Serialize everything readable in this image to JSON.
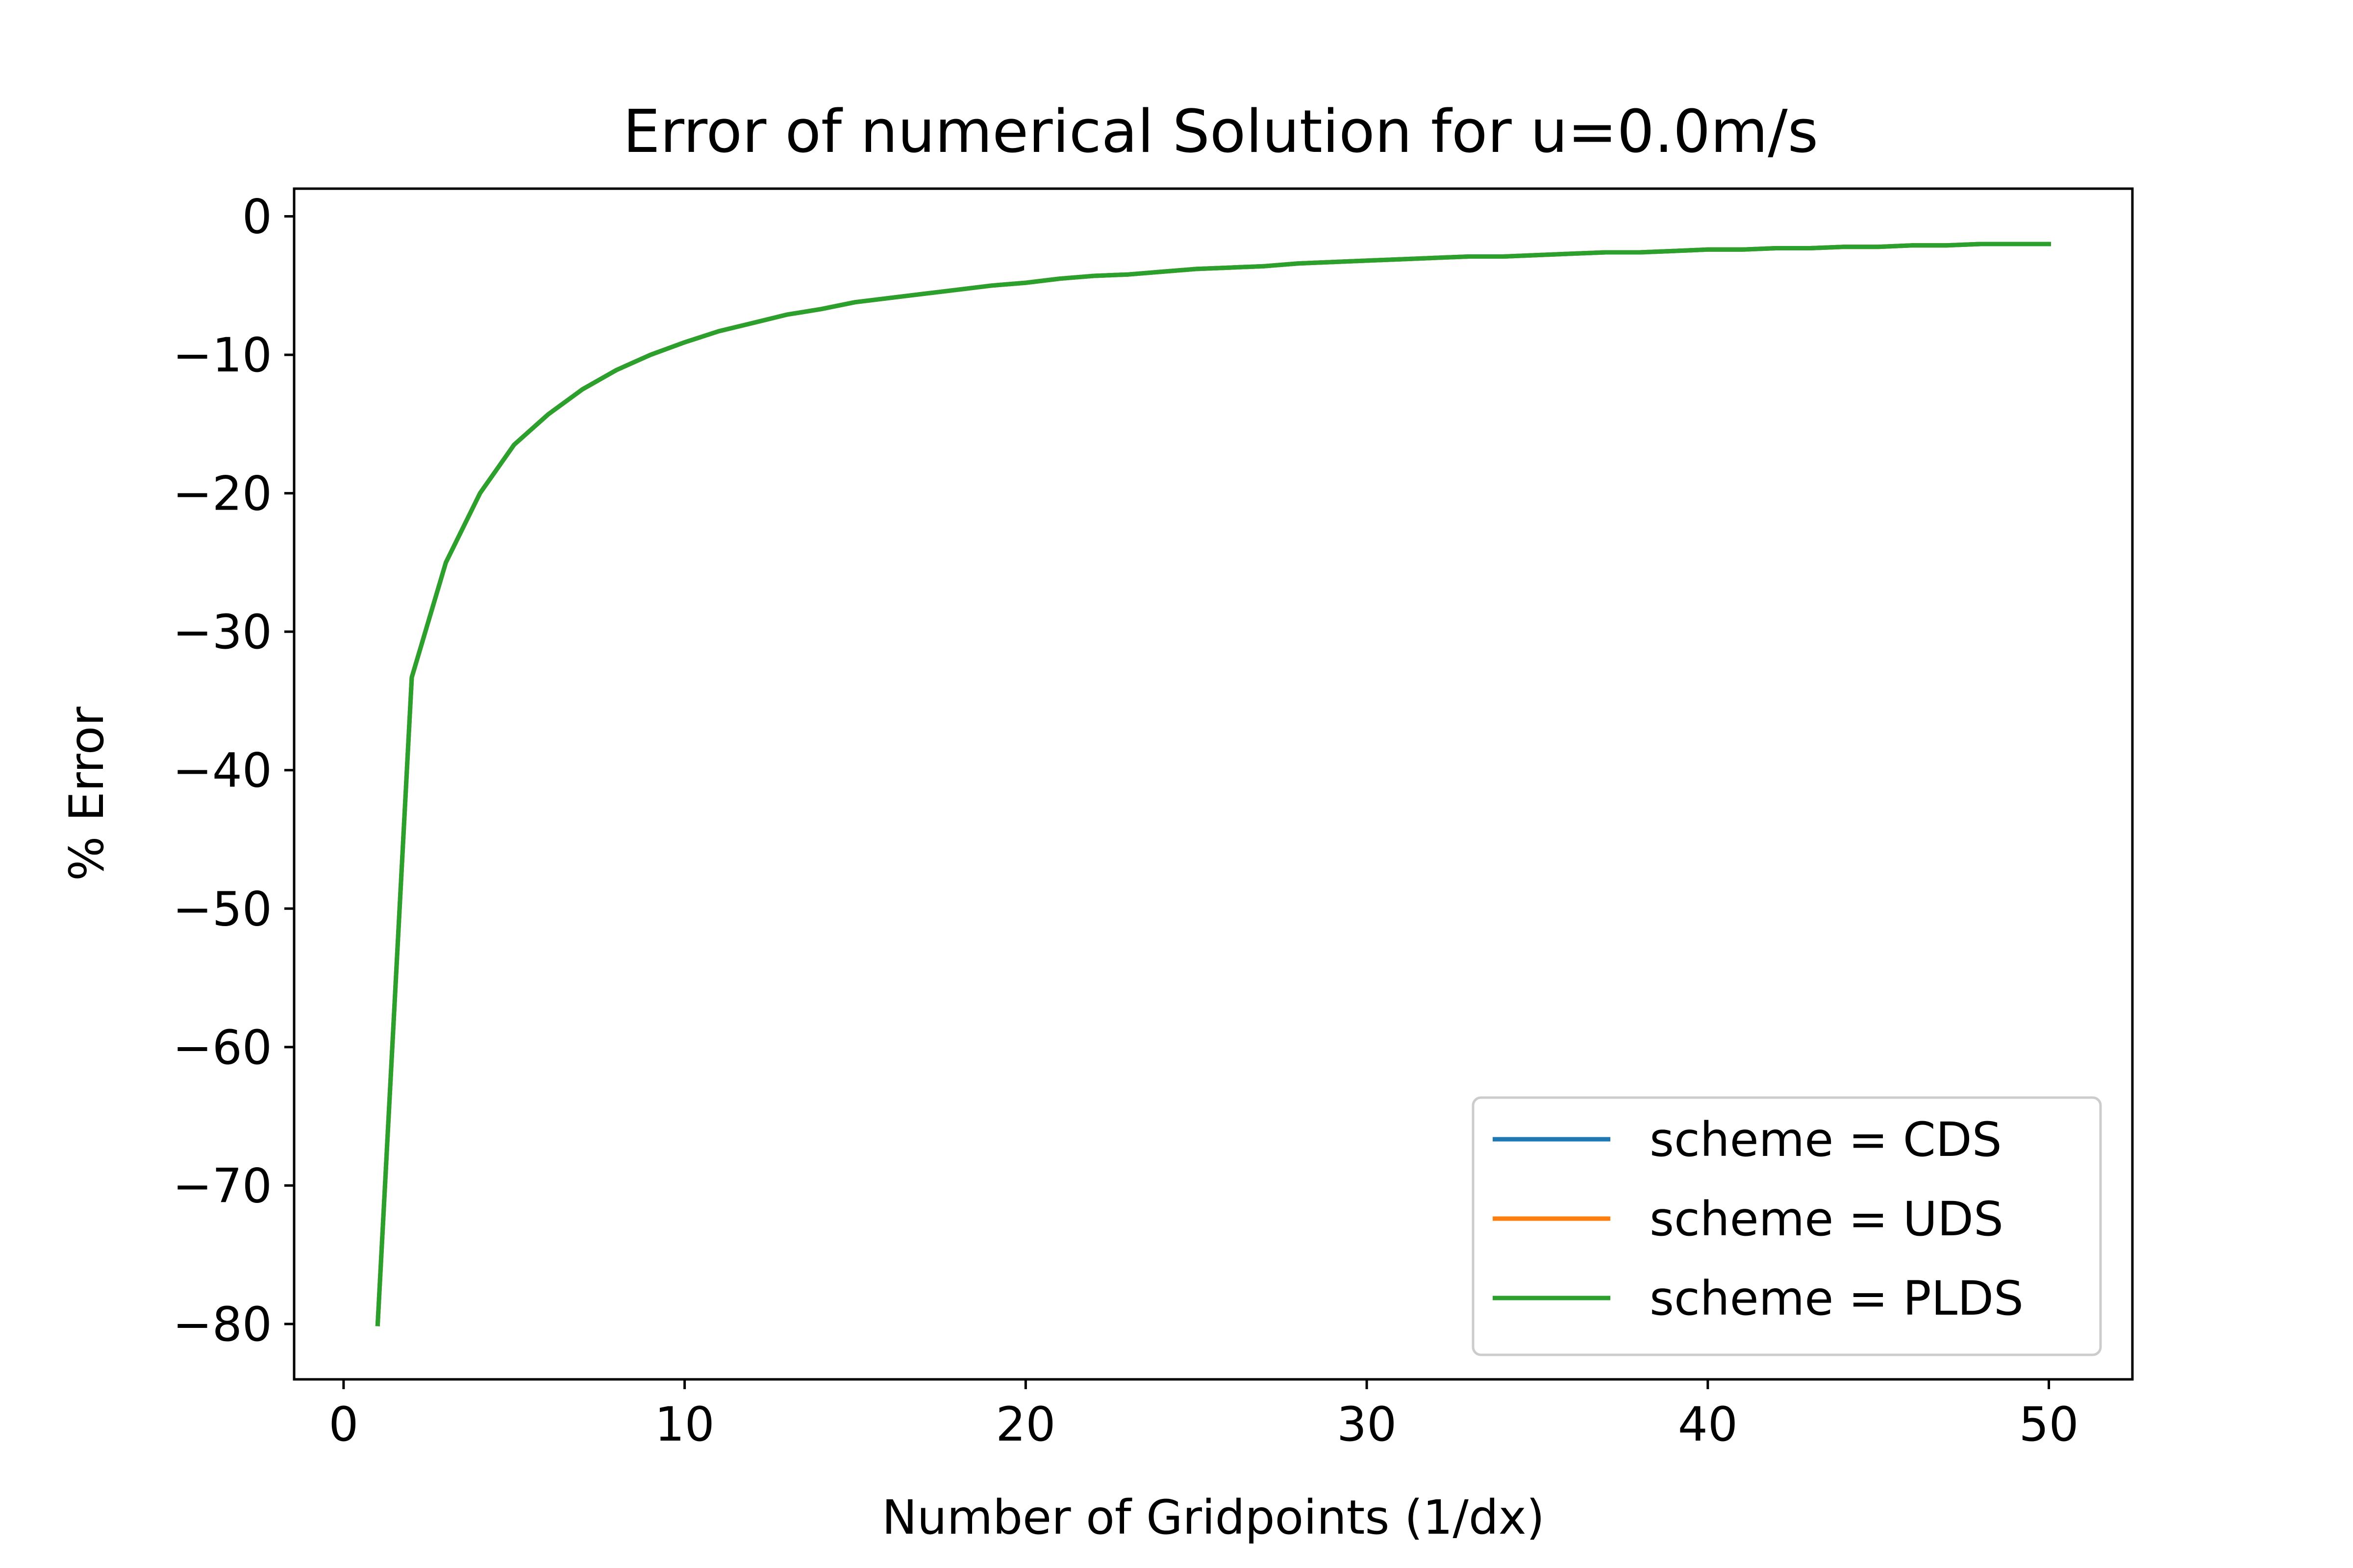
{
  "chart_data": {
    "type": "line",
    "title": "Error of numerical Solution for u=0.0m/s",
    "xlabel": "Number of Gridpoints (1/dx)",
    "ylabel": "% Error",
    "xlim": [
      -1.45,
      52.45
    ],
    "ylim": [
      -84.0,
      2.0
    ],
    "xticks": [
      0,
      10,
      20,
      30,
      40,
      50
    ],
    "xtick_labels": [
      "0",
      "10",
      "20",
      "30",
      "40",
      "50"
    ],
    "yticks": [
      0,
      -10,
      -20,
      -30,
      -40,
      -50,
      -60,
      -70,
      -80
    ],
    "ytick_labels": [
      "0",
      "−10",
      "−20",
      "−30",
      "−40",
      "−50",
      "−60",
      "−70",
      "−80"
    ],
    "grid": false,
    "legend_position": "lower-right",
    "x": [
      1,
      2,
      3,
      4,
      5,
      6,
      7,
      8,
      9,
      10,
      11,
      12,
      13,
      14,
      15,
      16,
      17,
      18,
      19,
      20,
      21,
      22,
      23,
      24,
      25,
      26,
      27,
      28,
      29,
      30,
      31,
      32,
      33,
      33,
      34,
      35,
      36,
      37,
      38,
      39,
      40,
      41,
      42,
      43,
      44,
      45,
      46,
      47,
      48,
      49,
      50
    ],
    "series": [
      {
        "name": "scheme = CDS",
        "color": "#1f77b4",
        "values": [
          -80.0,
          -33.3,
          -25.0,
          -20.0,
          -16.5,
          -14.3,
          -12.5,
          -11.1,
          -10.0,
          -9.1,
          -8.3,
          -7.7,
          -7.1,
          -6.7,
          -6.2,
          -5.9,
          -5.6,
          -5.3,
          -5.0,
          -4.8,
          -4.5,
          -4.3,
          -4.2,
          -4.0,
          -3.8,
          -3.7,
          -3.6,
          -3.4,
          -3.3,
          -3.2,
          -3.1,
          -3.0,
          -2.9,
          -2.9,
          -2.9,
          -2.8,
          -2.7,
          -2.6,
          -2.6,
          -2.5,
          -2.4,
          -2.4,
          -2.3,
          -2.3,
          -2.2,
          -2.2,
          -2.1,
          -2.1,
          -2.0,
          -2.0,
          -2.0
        ]
      },
      {
        "name": "scheme = UDS",
        "color": "#ff7f0e",
        "values": [
          -80.0,
          -33.3,
          -25.0,
          -20.0,
          -16.5,
          -14.3,
          -12.5,
          -11.1,
          -10.0,
          -9.1,
          -8.3,
          -7.7,
          -7.1,
          -6.7,
          -6.2,
          -5.9,
          -5.6,
          -5.3,
          -5.0,
          -4.8,
          -4.5,
          -4.3,
          -4.2,
          -4.0,
          -3.8,
          -3.7,
          -3.6,
          -3.4,
          -3.3,
          -3.2,
          -3.1,
          -3.0,
          -2.9,
          -2.9,
          -2.9,
          -2.8,
          -2.7,
          -2.6,
          -2.6,
          -2.5,
          -2.4,
          -2.4,
          -2.3,
          -2.3,
          -2.2,
          -2.2,
          -2.1,
          -2.1,
          -2.0,
          -2.0,
          -2.0
        ]
      },
      {
        "name": "scheme = PLDS",
        "color": "#2ca02c",
        "values": [
          -80.0,
          -33.3,
          -25.0,
          -20.0,
          -16.5,
          -14.3,
          -12.5,
          -11.1,
          -10.0,
          -9.1,
          -8.3,
          -7.7,
          -7.1,
          -6.7,
          -6.2,
          -5.9,
          -5.6,
          -5.3,
          -5.0,
          -4.8,
          -4.5,
          -4.3,
          -4.2,
          -4.0,
          -3.8,
          -3.7,
          -3.6,
          -3.4,
          -3.3,
          -3.2,
          -3.1,
          -3.0,
          -2.9,
          -2.9,
          -2.9,
          -2.8,
          -2.7,
          -2.6,
          -2.6,
          -2.5,
          -2.4,
          -2.4,
          -2.3,
          -2.3,
          -2.2,
          -2.2,
          -2.1,
          -2.1,
          -2.0,
          -2.0,
          -2.0
        ]
      }
    ]
  }
}
